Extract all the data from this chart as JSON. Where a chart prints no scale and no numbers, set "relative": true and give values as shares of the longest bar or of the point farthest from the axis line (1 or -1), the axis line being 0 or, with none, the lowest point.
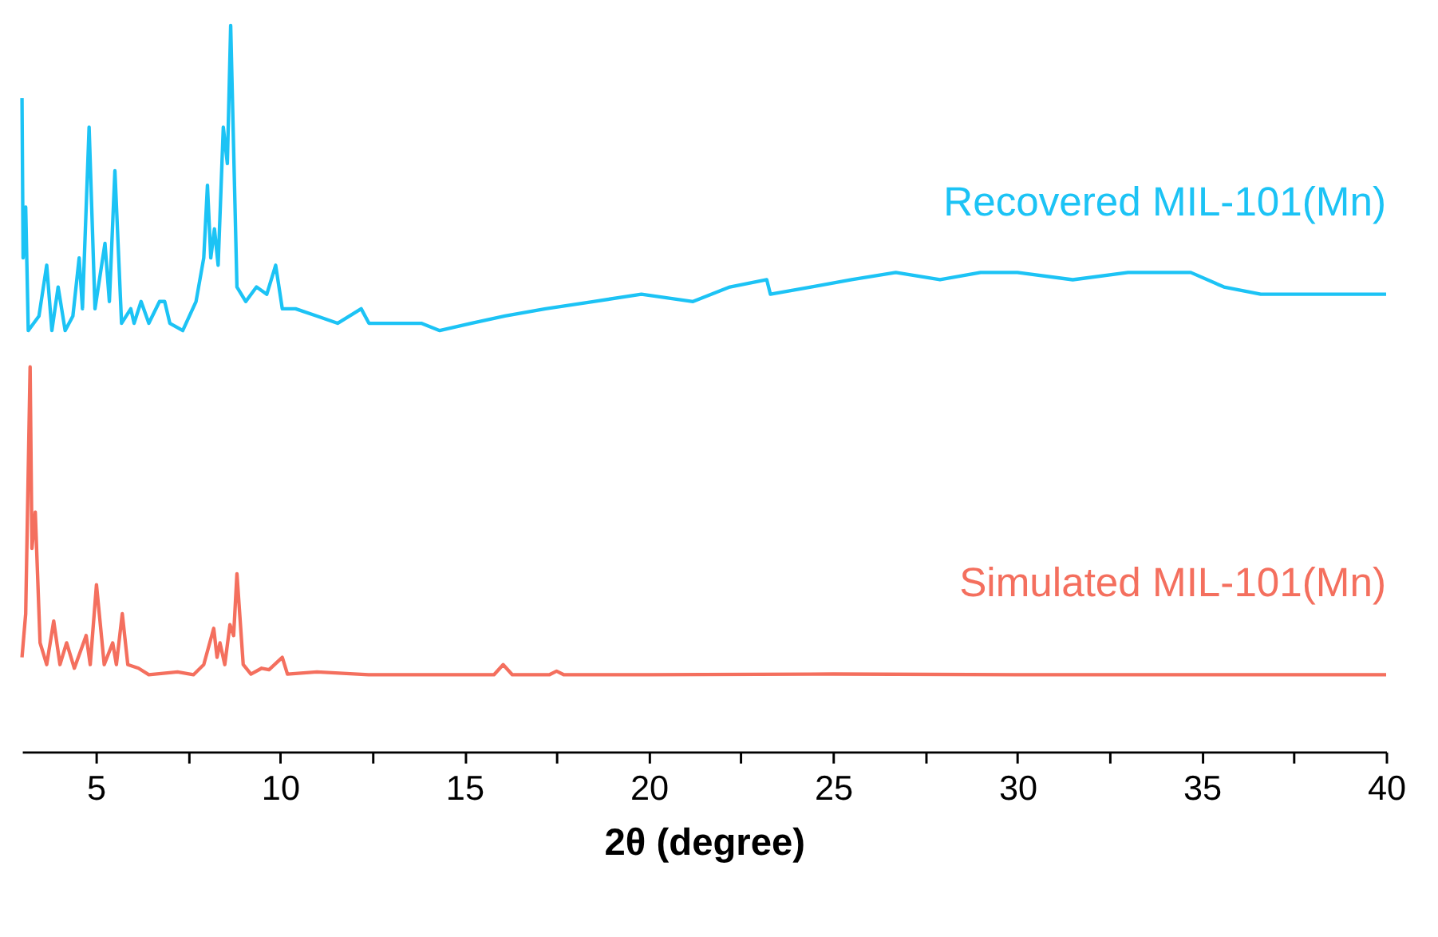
{
  "chart_data": {
    "type": "line",
    "relative": true,
    "xlabel": "2θ (degree)",
    "xlim": [
      3,
      40
    ],
    "xticks": [
      5,
      {
        "value": 7.5,
        "label": null
      },
      10,
      {
        "value": 12.5,
        "label": null
      },
      15,
      {
        "value": 17.5,
        "label": null
      },
      20,
      {
        "value": 22.5,
        "label": null
      },
      25,
      {
        "value": 27.5,
        "label": null
      },
      30,
      {
        "value": 32.5,
        "label": null
      },
      35,
      {
        "value": 37.5,
        "label": null
      },
      40
    ],
    "tick_labels": "x",
    "grid": false,
    "line_style": "solid",
    "marker": "none",
    "series": [
      {
        "name": "Recovered MIL-101(Mn)",
        "color": "#1cc3f5",
        "x": [
          3.0,
          3.03,
          3.1,
          3.17,
          3.46,
          3.67,
          3.81,
          3.98,
          4.17,
          4.38,
          4.55,
          4.64,
          4.82,
          4.98,
          5.25,
          5.37,
          5.52,
          5.7,
          5.95,
          6.04,
          6.23,
          6.44,
          6.73,
          6.87,
          7.01,
          7.36,
          7.72,
          7.93,
          8.03,
          8.12,
          8.22,
          8.32,
          8.46,
          8.57,
          8.66,
          8.83,
          9.07,
          9.36,
          9.64,
          9.88,
          10.06,
          10.42,
          11.0,
          11.56,
          12.2,
          12.41,
          13.83,
          14.33,
          15.18,
          16.1,
          17.2,
          18.5,
          19.8,
          21.2,
          22.2,
          23.2,
          23.3,
          24.4,
          25.5,
          26.7,
          27.9,
          29.0,
          30.0,
          31.5,
          33.0,
          34.7,
          35.6,
          36.6,
          38.3,
          40.0
        ],
        "values": [
          0.9,
          0.68,
          0.75,
          0.58,
          0.6,
          0.67,
          0.58,
          0.64,
          0.58,
          0.6,
          0.68,
          0.61,
          0.86,
          0.61,
          0.7,
          0.62,
          0.8,
          0.59,
          0.61,
          0.59,
          0.62,
          0.59,
          0.62,
          0.62,
          0.59,
          0.58,
          0.62,
          0.68,
          0.78,
          0.68,
          0.72,
          0.67,
          0.86,
          0.81,
          1.0,
          0.64,
          0.62,
          0.64,
          0.63,
          0.67,
          0.61,
          0.61,
          0.6,
          0.59,
          0.61,
          0.59,
          0.59,
          0.58,
          0.59,
          0.6,
          0.61,
          0.62,
          0.63,
          0.62,
          0.64,
          0.65,
          0.63,
          0.64,
          0.65,
          0.66,
          0.65,
          0.66,
          0.66,
          0.65,
          0.66,
          0.66,
          0.64,
          0.63,
          0.63,
          0.63
        ]
      },
      {
        "name": "Simulated MIL-101(Mn)",
        "color": "#f46f5e",
        "x": [
          3.0,
          3.1,
          3.22,
          3.27,
          3.36,
          3.49,
          3.67,
          3.86,
          4.03,
          4.21,
          4.42,
          4.74,
          4.85,
          5.02,
          5.23,
          5.46,
          5.56,
          5.72,
          5.87,
          6.16,
          6.44,
          7.22,
          7.65,
          7.93,
          8.2,
          8.29,
          8.37,
          8.5,
          8.64,
          8.74,
          8.83,
          9.0,
          9.21,
          9.5,
          9.7,
          10.06,
          10.2,
          11.0,
          12.4,
          15.8,
          16.05,
          16.3,
          17.3,
          17.5,
          17.7,
          20.0,
          25.0,
          30.0,
          35.0,
          40.0
        ],
        "values": [
          0.13,
          0.19,
          0.53,
          0.28,
          0.33,
          0.15,
          0.12,
          0.18,
          0.12,
          0.15,
          0.115,
          0.16,
          0.12,
          0.23,
          0.12,
          0.15,
          0.12,
          0.19,
          0.12,
          0.115,
          0.106,
          0.11,
          0.106,
          0.12,
          0.17,
          0.13,
          0.15,
          0.12,
          0.175,
          0.16,
          0.245,
          0.12,
          0.107,
          0.115,
          0.113,
          0.13,
          0.107,
          0.11,
          0.106,
          0.106,
          0.12,
          0.106,
          0.106,
          0.111,
          0.106,
          0.106,
          0.107,
          0.106,
          0.106,
          0.106
        ]
      }
    ]
  }
}
